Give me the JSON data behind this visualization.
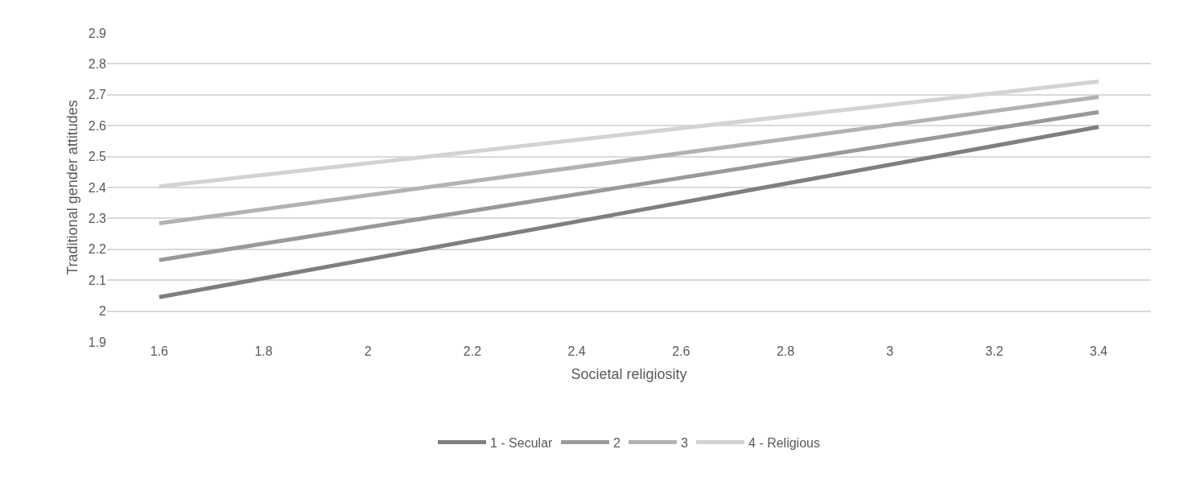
{
  "chart_data": {
    "type": "line",
    "xlabel": "Societal religiosity",
    "ylabel": "Traditional gender attitudes",
    "x": [
      1.6,
      3.4
    ],
    "series": [
      {
        "name": "1 - Secular",
        "color": "#7f7f7f",
        "values": [
          2.045,
          2.596
        ]
      },
      {
        "name": "2",
        "color": "#999999",
        "values": [
          2.165,
          2.644
        ]
      },
      {
        "name": "3",
        "color": "#b2b2b2",
        "values": [
          2.284,
          2.693
        ]
      },
      {
        "name": "4 - Religious",
        "color": "#d3d3d3",
        "values": [
          2.403,
          2.743
        ]
      }
    ],
    "xlim": [
      1.5,
      3.5
    ],
    "xticks": [
      1.6,
      1.8,
      2,
      2.2,
      2.4,
      2.6,
      2.8,
      3,
      3.2,
      3.4
    ],
    "ylim": [
      1.9,
      2.9
    ],
    "yticks": [
      1.9,
      2,
      2.1,
      2.2,
      2.3,
      2.4,
      2.5,
      2.6,
      2.7,
      2.8,
      2.9
    ],
    "grid": "y",
    "legend": "bottom",
    "marker": "none",
    "line_style": "solid"
  }
}
